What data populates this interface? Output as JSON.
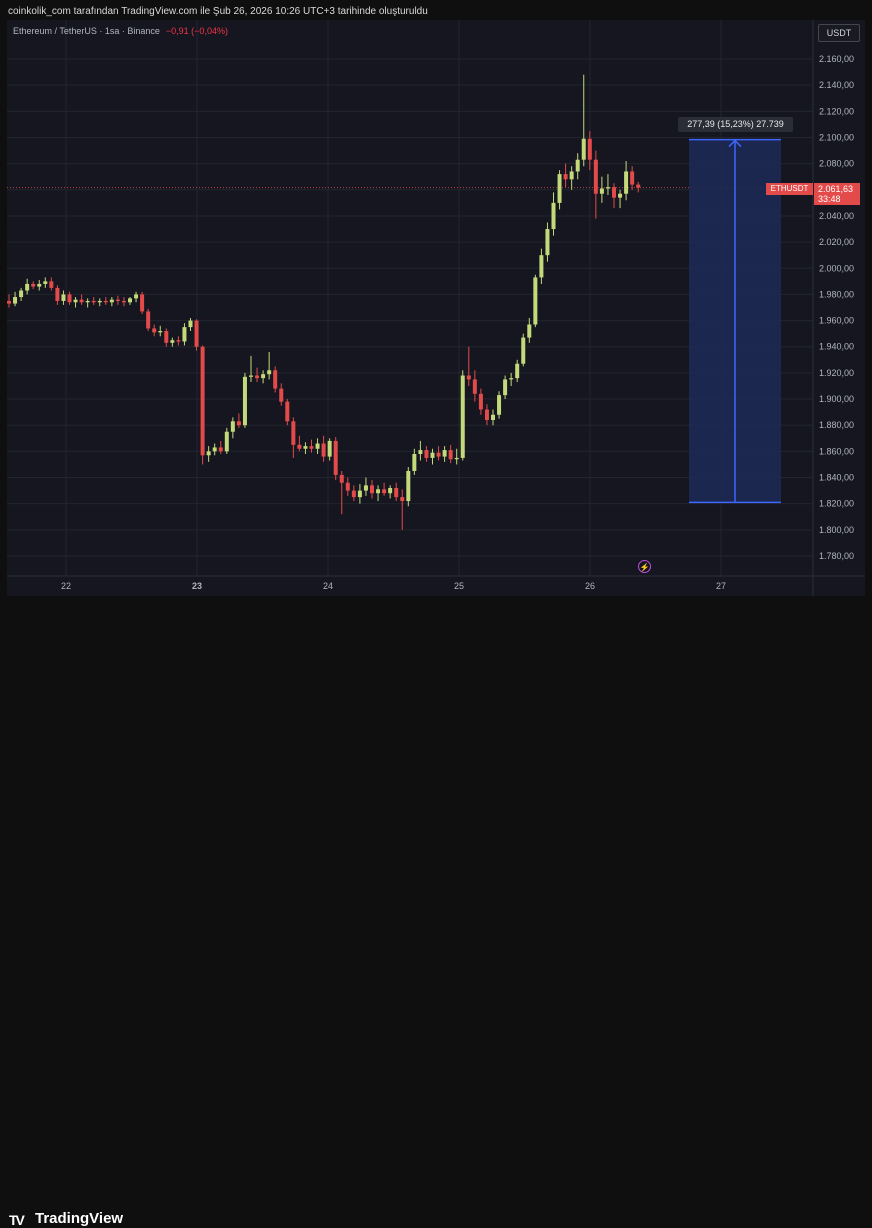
{
  "header": {
    "credit": "coinkolik_com tarafından TradingView.com ile Şub 26, 2026 10:26 UTC+3 tarihinde oluşturuldu"
  },
  "symbol": {
    "title": "Ethereum / TetherUS · 1sa · Binance",
    "change": "−0,91 (−0,04%)"
  },
  "currency": "USDT",
  "price_tag": {
    "symbol": "ETHUSDT",
    "price": "2.061,63",
    "countdown": "33:48",
    "value": 2061.63
  },
  "measure": {
    "label": "277,39 (15,23%) 27.739",
    "from": 1821.0,
    "to": 2098.4
  },
  "colors": {
    "up": "#c3d97a",
    "down": "#e34b4b",
    "background": "#151620",
    "grid": "#22242e",
    "measure_fill": "#1c2a57",
    "measure_line": "#3d67ff"
  },
  "footer": {
    "brand": "TradingView"
  },
  "chart_data": {
    "type": "candlestick",
    "interval": "1h",
    "x_labels": [
      "22",
      "23",
      "24",
      "25",
      "26",
      "27"
    ],
    "y_ticks": [
      1780,
      1800,
      1820,
      1840,
      1860,
      1880,
      1900,
      1920,
      1940,
      1960,
      1980,
      2000,
      2020,
      2040,
      2060,
      2080,
      2100,
      2120,
      2140,
      2160
    ],
    "y_tick_labels": [
      "1.780,00",
      "1.800,00",
      "1.820,00",
      "1.840,00",
      "1.860,00",
      "1.880,00",
      "1.900,00",
      "1.920,00",
      "1.940,00",
      "1.960,00",
      "1.980,00",
      "2.000,00",
      "2.020,00",
      "2.040,00",
      "2.060,00",
      "2.080,00",
      "2.100,00",
      "2.120,00",
      "2.140,00",
      "2.160,00"
    ],
    "ylim": [
      1760,
      2180
    ],
    "candles": [
      {
        "o": 1975,
        "h": 1980,
        "l": 1970,
        "c": 1973
      },
      {
        "o": 1973,
        "h": 1982,
        "l": 1971,
        "c": 1978
      },
      {
        "o": 1978,
        "h": 1985,
        "l": 1975,
        "c": 1983
      },
      {
        "o": 1983,
        "h": 1992,
        "l": 1980,
        "c": 1988
      },
      {
        "o": 1988,
        "h": 1990,
        "l": 1984,
        "c": 1986
      },
      {
        "o": 1986,
        "h": 1991,
        "l": 1983,
        "c": 1988
      },
      {
        "o": 1988,
        "h": 1993,
        "l": 1985,
        "c": 1990
      },
      {
        "o": 1990,
        "h": 1993,
        "l": 1983,
        "c": 1985
      },
      {
        "o": 1985,
        "h": 1987,
        "l": 1972,
        "c": 1975
      },
      {
        "o": 1975,
        "h": 1983,
        "l": 1972,
        "c": 1980
      },
      {
        "o": 1980,
        "h": 1982,
        "l": 1972,
        "c": 1974
      },
      {
        "o": 1974,
        "h": 1978,
        "l": 1970,
        "c": 1976
      },
      {
        "o": 1976,
        "h": 1980,
        "l": 1972,
        "c": 1974
      },
      {
        "o": 1974,
        "h": 1977,
        "l": 1970,
        "c": 1975
      },
      {
        "o": 1975,
        "h": 1978,
        "l": 1972,
        "c": 1974
      },
      {
        "o": 1974,
        "h": 1977,
        "l": 1971,
        "c": 1975
      },
      {
        "o": 1975,
        "h": 1978,
        "l": 1972,
        "c": 1974
      },
      {
        "o": 1974,
        "h": 1978,
        "l": 1971,
        "c": 1976
      },
      {
        "o": 1976,
        "h": 1979,
        "l": 1972,
        "c": 1975
      },
      {
        "o": 1975,
        "h": 1978,
        "l": 1971,
        "c": 1974
      },
      {
        "o": 1974,
        "h": 1978,
        "l": 1972,
        "c": 1977
      },
      {
        "o": 1977,
        "h": 1982,
        "l": 1974,
        "c": 1980
      },
      {
        "o": 1980,
        "h": 1982,
        "l": 1965,
        "c": 1967
      },
      {
        "o": 1967,
        "h": 1969,
        "l": 1952,
        "c": 1954
      },
      {
        "o": 1954,
        "h": 1957,
        "l": 1948,
        "c": 1951
      },
      {
        "o": 1951,
        "h": 1956,
        "l": 1948,
        "c": 1952
      },
      {
        "o": 1952,
        "h": 1954,
        "l": 1940,
        "c": 1943
      },
      {
        "o": 1943,
        "h": 1947,
        "l": 1940,
        "c": 1945
      },
      {
        "o": 1945,
        "h": 1948,
        "l": 1941,
        "c": 1944
      },
      {
        "o": 1944,
        "h": 1958,
        "l": 1941,
        "c": 1955
      },
      {
        "o": 1955,
        "h": 1962,
        "l": 1952,
        "c": 1960
      },
      {
        "o": 1960,
        "h": 1961,
        "l": 1937,
        "c": 1940
      },
      {
        "o": 1940,
        "h": 1941,
        "l": 1850,
        "c": 1857
      },
      {
        "o": 1857,
        "h": 1864,
        "l": 1852,
        "c": 1860
      },
      {
        "o": 1860,
        "h": 1866,
        "l": 1857,
        "c": 1863
      },
      {
        "o": 1863,
        "h": 1868,
        "l": 1858,
        "c": 1860
      },
      {
        "o": 1860,
        "h": 1878,
        "l": 1858,
        "c": 1875
      },
      {
        "o": 1875,
        "h": 1886,
        "l": 1870,
        "c": 1883
      },
      {
        "o": 1883,
        "h": 1889,
        "l": 1878,
        "c": 1880
      },
      {
        "o": 1880,
        "h": 1920,
        "l": 1878,
        "c": 1917
      },
      {
        "o": 1917,
        "h": 1933,
        "l": 1913,
        "c": 1918
      },
      {
        "o": 1918,
        "h": 1924,
        "l": 1913,
        "c": 1916
      },
      {
        "o": 1916,
        "h": 1922,
        "l": 1912,
        "c": 1919
      },
      {
        "o": 1919,
        "h": 1936,
        "l": 1915,
        "c": 1922
      },
      {
        "o": 1922,
        "h": 1925,
        "l": 1905,
        "c": 1908
      },
      {
        "o": 1908,
        "h": 1912,
        "l": 1895,
        "c": 1898
      },
      {
        "o": 1898,
        "h": 1900,
        "l": 1880,
        "c": 1883
      },
      {
        "o": 1883,
        "h": 1886,
        "l": 1855,
        "c": 1865
      },
      {
        "o": 1865,
        "h": 1872,
        "l": 1860,
        "c": 1862
      },
      {
        "o": 1862,
        "h": 1867,
        "l": 1858,
        "c": 1864
      },
      {
        "o": 1864,
        "h": 1869,
        "l": 1859,
        "c": 1862
      },
      {
        "o": 1862,
        "h": 1870,
        "l": 1858,
        "c": 1866
      },
      {
        "o": 1866,
        "h": 1872,
        "l": 1852,
        "c": 1856
      },
      {
        "o": 1856,
        "h": 1870,
        "l": 1853,
        "c": 1868
      },
      {
        "o": 1868,
        "h": 1871,
        "l": 1838,
        "c": 1842
      },
      {
        "o": 1842,
        "h": 1845,
        "l": 1812,
        "c": 1836
      },
      {
        "o": 1836,
        "h": 1840,
        "l": 1826,
        "c": 1830
      },
      {
        "o": 1830,
        "h": 1834,
        "l": 1822,
        "c": 1825
      },
      {
        "o": 1825,
        "h": 1835,
        "l": 1820,
        "c": 1830
      },
      {
        "o": 1830,
        "h": 1840,
        "l": 1826,
        "c": 1834
      },
      {
        "o": 1834,
        "h": 1838,
        "l": 1824,
        "c": 1828
      },
      {
        "o": 1828,
        "h": 1834,
        "l": 1822,
        "c": 1831
      },
      {
        "o": 1831,
        "h": 1836,
        "l": 1826,
        "c": 1828
      },
      {
        "o": 1828,
        "h": 1834,
        "l": 1824,
        "c": 1832
      },
      {
        "o": 1832,
        "h": 1836,
        "l": 1822,
        "c": 1825
      },
      {
        "o": 1825,
        "h": 1831,
        "l": 1800,
        "c": 1822
      },
      {
        "o": 1822,
        "h": 1848,
        "l": 1818,
        "c": 1845
      },
      {
        "o": 1845,
        "h": 1862,
        "l": 1842,
        "c": 1858
      },
      {
        "o": 1858,
        "h": 1868,
        "l": 1853,
        "c": 1861
      },
      {
        "o": 1861,
        "h": 1864,
        "l": 1852,
        "c": 1855
      },
      {
        "o": 1855,
        "h": 1862,
        "l": 1850,
        "c": 1859
      },
      {
        "o": 1859,
        "h": 1864,
        "l": 1853,
        "c": 1856
      },
      {
        "o": 1856,
        "h": 1864,
        "l": 1852,
        "c": 1861
      },
      {
        "o": 1861,
        "h": 1865,
        "l": 1851,
        "c": 1854
      },
      {
        "o": 1854,
        "h": 1862,
        "l": 1850,
        "c": 1855
      },
      {
        "o": 1855,
        "h": 1922,
        "l": 1853,
        "c": 1918
      },
      {
        "o": 1918,
        "h": 1940,
        "l": 1910,
        "c": 1915
      },
      {
        "o": 1915,
        "h": 1922,
        "l": 1898,
        "c": 1904
      },
      {
        "o": 1904,
        "h": 1908,
        "l": 1888,
        "c": 1892
      },
      {
        "o": 1892,
        "h": 1896,
        "l": 1880,
        "c": 1884
      },
      {
        "o": 1884,
        "h": 1892,
        "l": 1880,
        "c": 1888
      },
      {
        "o": 1888,
        "h": 1906,
        "l": 1885,
        "c": 1903
      },
      {
        "o": 1903,
        "h": 1918,
        "l": 1900,
        "c": 1915
      },
      {
        "o": 1915,
        "h": 1920,
        "l": 1910,
        "c": 1916
      },
      {
        "o": 1916,
        "h": 1930,
        "l": 1913,
        "c": 1927
      },
      {
        "o": 1927,
        "h": 1950,
        "l": 1925,
        "c": 1947
      },
      {
        "o": 1947,
        "h": 1962,
        "l": 1943,
        "c": 1957
      },
      {
        "o": 1957,
        "h": 1995,
        "l": 1955,
        "c": 1993
      },
      {
        "o": 1993,
        "h": 2015,
        "l": 1988,
        "c": 2010
      },
      {
        "o": 2010,
        "h": 2035,
        "l": 2005,
        "c": 2030
      },
      {
        "o": 2030,
        "h": 2058,
        "l": 2025,
        "c": 2050
      },
      {
        "o": 2050,
        "h": 2075,
        "l": 2045,
        "c": 2072
      },
      {
        "o": 2072,
        "h": 2080,
        "l": 2062,
        "c": 2068
      },
      {
        "o": 2068,
        "h": 2078,
        "l": 2060,
        "c": 2074
      },
      {
        "o": 2074,
        "h": 2088,
        "l": 2068,
        "c": 2083
      },
      {
        "o": 2083,
        "h": 2148,
        "l": 2078,
        "c": 2099
      },
      {
        "o": 2099,
        "h": 2105,
        "l": 2075,
        "c": 2083
      },
      {
        "o": 2083,
        "h": 2090,
        "l": 2038,
        "c": 2057
      },
      {
        "o": 2057,
        "h": 2070,
        "l": 2050,
        "c": 2061
      },
      {
        "o": 2061,
        "h": 2072,
        "l": 2056,
        "c": 2062
      },
      {
        "o": 2062,
        "h": 2065,
        "l": 2046,
        "c": 2054
      },
      {
        "o": 2054,
        "h": 2060,
        "l": 2046,
        "c": 2057
      },
      {
        "o": 2057,
        "h": 2082,
        "l": 2052,
        "c": 2074
      },
      {
        "o": 2074,
        "h": 2078,
        "l": 2060,
        "c": 2064
      },
      {
        "o": 2064,
        "h": 2066,
        "l": 2058,
        "c": 2061.63
      }
    ]
  }
}
